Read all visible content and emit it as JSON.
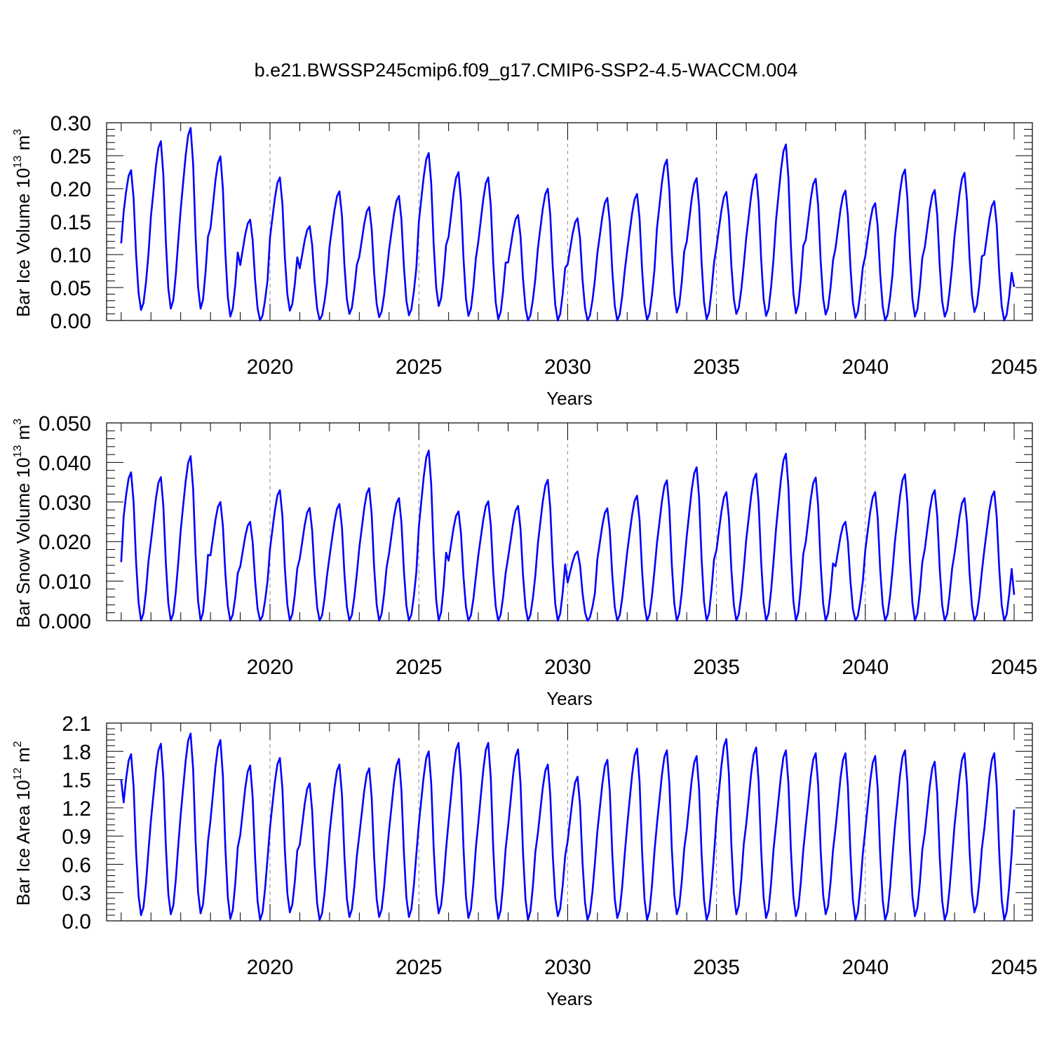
{
  "figure": {
    "title": "b.e21.BWSSP245cmip6.f09_g17.CMIP6-SSP2-4.5-WACCM.004"
  },
  "chart_data": [
    {
      "type": "line",
      "title": "b.e21.BWSSP245cmip6.f09_g17.CMIP6-SSP2-4.5-WACCM.004",
      "xlabel": "Years",
      "ylabel_text": "Bar Ice Volume 10",
      "ylabel_exp": "13",
      "ylabel_unit": "m",
      "ylabel_unit_exp": "3",
      "xlim": [
        2015,
        2045
      ],
      "ylim": [
        0,
        0.3
      ],
      "xticks": [
        2020,
        2025,
        2030,
        2035,
        2040,
        2045
      ],
      "xtick_labels": [
        "2020",
        "2025",
        "2030",
        "2035",
        "2040",
        "2045"
      ],
      "yticks": [
        0,
        0.05,
        0.1,
        0.15,
        0.2,
        0.25,
        0.3
      ],
      "ytick_labels": [
        "0.00",
        "0.05",
        "0.10",
        "0.15",
        "0.20",
        "0.25",
        "0.30"
      ],
      "grid": "dashed vertical at major x ticks",
      "series": [
        {
          "color": "#0000ff",
          "x_start": 2015.0,
          "x_step": 0.0833333,
          "annual_peaks": [
            0.228,
            0.272,
            0.292,
            0.249,
            0.153,
            0.217,
            0.143,
            0.196,
            0.172,
            0.189,
            0.254,
            0.225,
            0.217,
            0.16,
            0.2,
            0.155,
            0.186,
            0.192,
            0.244,
            0.216,
            0.195,
            0.222,
            0.267,
            0.215,
            0.197,
            0.178,
            0.229,
            0.198,
            0.224,
            0.181
          ],
          "annual_minima": [
            0.016,
            0.018,
            0.018,
            0.006,
            0.0,
            0.015,
            0.001,
            0.01,
            0.005,
            0.008,
            0.022,
            0.007,
            0.002,
            0.0,
            0.0,
            0.0,
            0.0,
            0.001,
            0.012,
            0.002,
            0.01,
            0.007,
            0.011,
            0.009,
            0.004,
            0.0,
            0.006,
            0.006,
            0.013,
            0.0
          ],
          "start_value": 0.117,
          "end_value": 0.051
        }
      ]
    },
    {
      "type": "line",
      "xlabel": "Years",
      "ylabel_text": "Bar Snow Volume 10",
      "ylabel_exp": "13",
      "ylabel_unit": "m",
      "ylabel_unit_exp": "3",
      "xlim": [
        2015,
        2045
      ],
      "ylim": [
        0,
        0.05
      ],
      "xticks": [
        2020,
        2025,
        2030,
        2035,
        2040,
        2045
      ],
      "xtick_labels": [
        "2020",
        "2025",
        "2030",
        "2035",
        "2040",
        "2045"
      ],
      "yticks": [
        0,
        0.01,
        0.02,
        0.03,
        0.04,
        0.05
      ],
      "ytick_labels": [
        "0.000",
        "0.010",
        "0.020",
        "0.030",
        "0.040",
        "0.050"
      ],
      "grid": "dashed vertical at major x ticks",
      "series": [
        {
          "color": "#0000ff",
          "x_start": 2015.0,
          "x_step": 0.0833333,
          "annual_peaks": [
            0.0375,
            0.0363,
            0.0416,
            0.03,
            0.025,
            0.033,
            0.0285,
            0.0295,
            0.0335,
            0.031,
            0.043,
            0.0276,
            0.0302,
            0.029,
            0.0356,
            0.0175,
            0.0284,
            0.0316,
            0.0355,
            0.0388,
            0.0325,
            0.0372,
            0.0422,
            0.0362,
            0.025,
            0.0325,
            0.037,
            0.033,
            0.031,
            0.0327
          ],
          "annual_minima": 0.0,
          "start_value": 0.0148,
          "end_value": 0.0065
        }
      ]
    },
    {
      "type": "line",
      "xlabel": "Years",
      "ylabel_text": "Bar Ice Area 10",
      "ylabel_exp": "12",
      "ylabel_unit": "m",
      "ylabel_unit_exp": "2",
      "xlim": [
        2015,
        2045
      ],
      "ylim": [
        0,
        2.1
      ],
      "xticks": [
        2020,
        2025,
        2030,
        2035,
        2040,
        2045
      ],
      "xtick_labels": [
        "2020",
        "2025",
        "2030",
        "2035",
        "2040",
        "2045"
      ],
      "yticks": [
        0,
        0.3,
        0.6,
        0.9,
        1.2,
        1.5,
        1.8,
        2.1
      ],
      "ytick_labels": [
        "0.0",
        "0.3",
        "0.6",
        "0.9",
        "1.2",
        "1.5",
        "1.8",
        "2.1"
      ],
      "grid": "dashed vertical at major x ticks",
      "series": [
        {
          "color": "#0000ff",
          "x_start": 2015.0,
          "x_step": 0.0833333,
          "annual_peaks": [
            1.77,
            1.88,
            1.99,
            1.92,
            1.65,
            1.73,
            1.46,
            1.66,
            1.62,
            1.72,
            1.8,
            1.89,
            1.89,
            1.82,
            1.66,
            1.53,
            1.71,
            1.83,
            1.81,
            1.75,
            1.93,
            1.84,
            1.81,
            1.78,
            1.78,
            1.75,
            1.81,
            1.69,
            1.78,
            1.78
          ],
          "annual_minima": [
            0.06,
            0.07,
            0.08,
            0.02,
            0.01,
            0.09,
            0.01,
            0.04,
            0.04,
            0.04,
            0.08,
            0.03,
            0.02,
            0.01,
            0.05,
            0.01,
            0.03,
            0.01,
            0.07,
            0.01,
            0.07,
            0.03,
            0.05,
            0.07,
            0.01,
            0.01,
            0.05,
            0.01,
            0.09,
            0.01
          ],
          "start_value": 1.5,
          "end_value": 1.18
        }
      ]
    }
  ]
}
